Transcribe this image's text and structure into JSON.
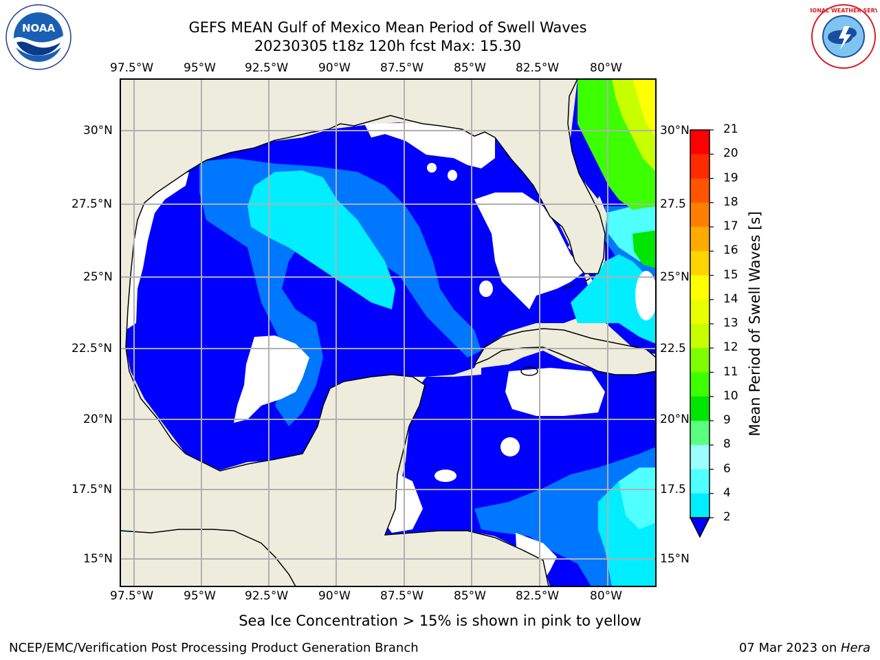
{
  "header": {
    "title_line1": "GEFS MEAN Gulf of Mexico Mean Period of Swell Waves",
    "title_line2": "20230305 t18z 120h fcst   Max: 15.30"
  },
  "logos": {
    "left": {
      "name": "noaa-logo",
      "text": "NOAA"
    },
    "right": {
      "name": "nws-logo",
      "text": "NATIONAL WEATHER SERVICE"
    }
  },
  "map": {
    "longitude_labels": [
      "97.5°W",
      "95°W",
      "92.5°W",
      "90°W",
      "87.5°W",
      "85°W",
      "82.5°W",
      "80°W"
    ],
    "latitude_labels_left": [
      "30°N",
      "27.5°N",
      "25°N",
      "22.5°N",
      "20°N",
      "17.5°N",
      "15°N"
    ],
    "latitude_labels_right": [
      "30°N",
      "27.5",
      "25°N",
      "22.5",
      "20°N",
      "17.5",
      "15°N"
    ],
    "colors": {
      "land": "#eeecdc",
      "grid": "#b0b0b0",
      "coast": "#000000"
    }
  },
  "colorbar": {
    "label": "Mean Period of Swell Waves [s]",
    "ticks": [
      "21",
      "20",
      "19",
      "18",
      "17",
      "16",
      "15",
      "14",
      "13",
      "12",
      "11",
      "10",
      "9",
      "8",
      "6",
      "4",
      "2"
    ],
    "colors": [
      "#ff0000",
      "#ff2a00",
      "#ff5400",
      "#ff8000",
      "#ffab00",
      "#ffd400",
      "#ffff00",
      "#e8ff00",
      "#c8ff00",
      "#7dff00",
      "#3cff00",
      "#00e600",
      "#5aff80",
      "#9bffff",
      "#50ffff",
      "#00eeff",
      "#0077ff",
      "#0000ff"
    ]
  },
  "note": "Sea Ice Concentration > 15% is shown in pink to yellow",
  "footer": {
    "left": "NCEP/EMC/Verification Post Processing Product Generation Branch",
    "right_date": "07 Mar 2023 on ",
    "right_host": "Hera"
  }
}
